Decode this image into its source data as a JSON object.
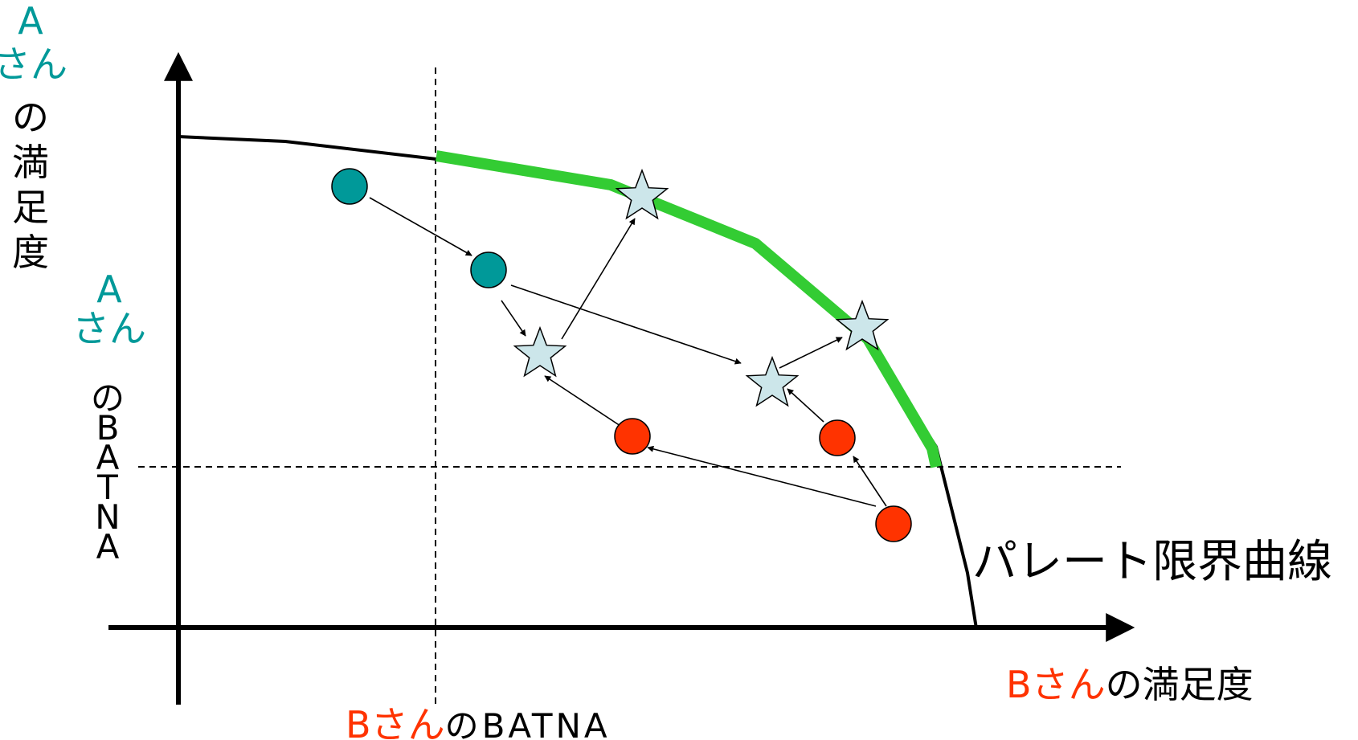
{
  "labels": {
    "y_axis": {
      "person": "A",
      "san": "さん",
      "rest": [
        "の",
        "満",
        "足",
        "度"
      ]
    },
    "a_batna": {
      "person": "A",
      "san": "さん",
      "rest": [
        "の",
        "B",
        "A",
        "T",
        "N",
        "A"
      ]
    },
    "x_axis": {
      "person": "B",
      "san": "さん",
      "rest": "の満足度"
    },
    "b_batna": {
      "person": "B",
      "san": "さん",
      "rest": "のBATNA"
    },
    "pareto": "パレート限界曲線"
  },
  "colors": {
    "person_a": "#009999",
    "person_b": "#ff3300",
    "frontier_highlight": "#33cc33",
    "star_fill": "#cce6ea"
  }
}
